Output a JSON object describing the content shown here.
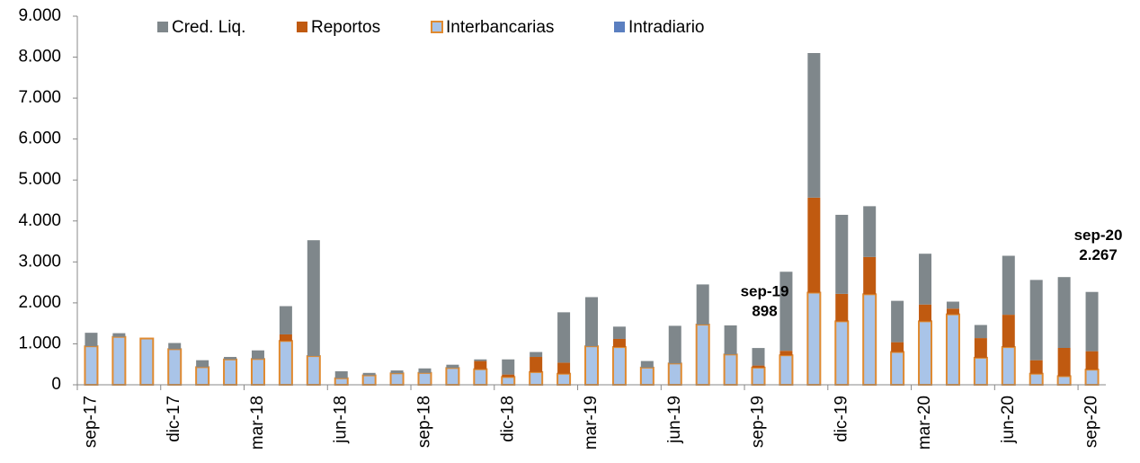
{
  "chart_data": {
    "type": "stacked_bar",
    "categories": [
      "sep-17",
      null,
      null,
      "dic-17",
      null,
      null,
      "mar-18",
      null,
      null,
      "jun-18",
      null,
      null,
      "sep-18",
      null,
      null,
      "dic-18",
      null,
      null,
      "mar-19",
      null,
      null,
      "jun-19",
      null,
      null,
      "sep-19",
      null,
      null,
      "dic-19",
      null,
      null,
      "mar-20",
      null,
      null,
      "jun-20",
      null,
      null,
      "sep-20"
    ],
    "series": [
      {
        "name": "Interbancarias",
        "color": "#a9c4e8",
        "edge": "#e08a30",
        "values": [
          940,
          1170,
          1130,
          870,
          430,
          620,
          630,
          1070,
          700,
          160,
          230,
          280,
          290,
          410,
          380,
          190,
          310,
          270,
          940,
          920,
          420,
          520,
          1470,
          740,
          420,
          720,
          2250,
          1550,
          2210,
          800,
          1550,
          1720,
          660,
          920,
          270,
          210,
          370
        ]
      },
      {
        "name": "Reportos",
        "color": "#c05a10",
        "values": [
          0,
          0,
          0,
          0,
          0,
          0,
          0,
          160,
          0,
          0,
          0,
          0,
          0,
          0,
          200,
          60,
          370,
          270,
          0,
          200,
          0,
          0,
          0,
          0,
          50,
          110,
          2320,
          670,
          910,
          240,
          410,
          140,
          480,
          790,
          330,
          690,
          450
        ]
      },
      {
        "name": "Cred. Liq.",
        "color": "#7f878b",
        "values": [
          330,
          90,
          0,
          150,
          170,
          60,
          210,
          690,
          2830,
          170,
          60,
          70,
          110,
          80,
          40,
          370,
          120,
          1230,
          1200,
          300,
          160,
          920,
          980,
          710,
          428,
          1930,
          3530,
          1930,
          1240,
          1010,
          1240,
          170,
          320,
          1440,
          1960,
          1730,
          1447
        ]
      },
      {
        "name": "Intradiario",
        "color": "#5b7fc0",
        "values": [
          0,
          0,
          0,
          0,
          0,
          0,
          0,
          0,
          0,
          0,
          0,
          0,
          0,
          0,
          0,
          0,
          0,
          0,
          0,
          0,
          0,
          0,
          0,
          0,
          0,
          0,
          0,
          0,
          0,
          0,
          0,
          0,
          0,
          0,
          0,
          0,
          0
        ]
      }
    ],
    "legend_order": [
      "Cred. Liq.",
      "Reportos",
      "Interbancarias",
      "Intradiario"
    ],
    "ylim": [
      0,
      9000
    ],
    "yticks": [
      0,
      {
        "value": 1000,
        "label": "1.000"
      },
      {
        "value": 2000,
        "label": "2.000"
      },
      {
        "value": 3000,
        "label": "3.000"
      },
      {
        "value": 4000,
        "label": "4.000"
      },
      {
        "value": 5000,
        "label": "5.000"
      },
      {
        "value": 6000,
        "label": "6.000"
      },
      {
        "value": 7000,
        "label": "7.000"
      },
      {
        "value": 8000,
        "label": "8.000"
      },
      {
        "value": 9000,
        "label": "9.000"
      }
    ],
    "annotations": [
      {
        "label": "sep-19",
        "text": "898"
      },
      {
        "label": "sep-20",
        "text": "2.267"
      }
    ]
  }
}
